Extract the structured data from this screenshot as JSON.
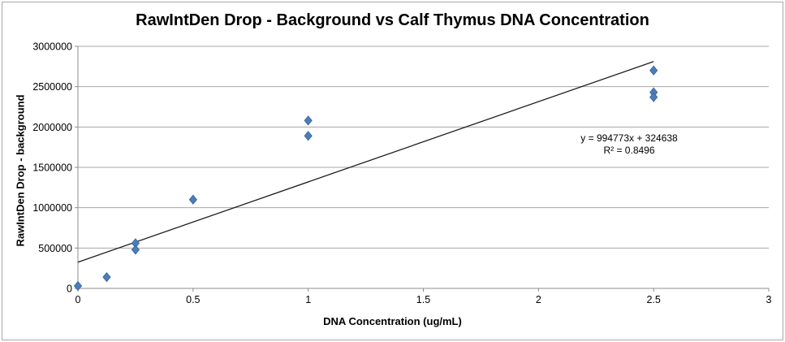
{
  "window": {
    "background": "#ffffff",
    "border_color": "#a8a8a8"
  },
  "chart_data": {
    "type": "scatter",
    "title": "RawIntDen Drop - Background vs Calf Thymus DNA Concentration",
    "xlabel": "DNA Concentration (ug/mL)",
    "ylabel": "RawIntDen  Drop - background",
    "xlim": [
      0,
      3
    ],
    "ylim": [
      0,
      3000000
    ],
    "x_ticks": [
      0,
      0.5,
      1,
      1.5,
      2,
      2.5,
      3
    ],
    "x_tick_labels": [
      "0",
      "0.5",
      "1",
      "1.5",
      "2",
      "2.5",
      "3"
    ],
    "y_ticks": [
      0,
      500000,
      1000000,
      1500000,
      2000000,
      2500000,
      3000000
    ],
    "y_tick_labels": [
      "0",
      "500000",
      "1000000",
      "1500000",
      "2000000",
      "2500000",
      "3000000"
    ],
    "grid": "horizontal-only",
    "legend": "none",
    "points": [
      {
        "x": 0,
        "y": 30000
      },
      {
        "x": 0.125,
        "y": 140000
      },
      {
        "x": 0.25,
        "y": 560000
      },
      {
        "x": 0.25,
        "y": 480000
      },
      {
        "x": 0.5,
        "y": 1100000
      },
      {
        "x": 1,
        "y": 2080000
      },
      {
        "x": 1,
        "y": 1890000
      },
      {
        "x": 2.5,
        "y": 2700000
      },
      {
        "x": 2.5,
        "y": 2430000
      },
      {
        "x": 2.5,
        "y": 2370000
      }
    ],
    "trendline": {
      "slope": 994773,
      "intercept": 324638,
      "x_start": 0,
      "x_end": 2.5
    },
    "equation_label": {
      "line1": "y = 994773x + 324638",
      "line2": "R² = 0.8496"
    },
    "marker": {
      "shape": "diamond",
      "fill": "#4A7EBB",
      "stroke": "#39629C"
    },
    "colors": {
      "gridline": "#a6a6a6",
      "axis": "#8c8c8c",
      "trendline": "#1f1f1f",
      "text": "#000000"
    }
  }
}
